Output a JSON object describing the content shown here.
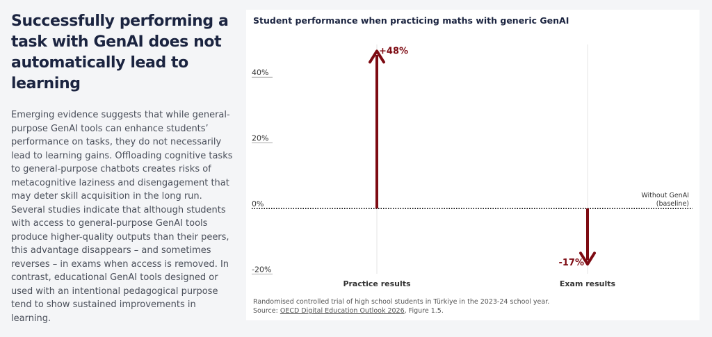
{
  "headline": "Successfully performing a task with GenAI does not automatically lead to learning",
  "body": "Emerging evidence suggests that while general-purpose GenAI tools can enhance students’ performance on tasks, they do not necessarily lead to learning gains. Offloading cognitive tasks to general-purpose chatbots creates risks of metacognitive laziness and disengagement that may deter skill acquisition in the long run. Several studies indicate that although students with access to general-purpose GenAI tools produce higher-quality outputs than their peers, this advantage disappears – and sometimes reverses – in exams when access is removed. In contrast,  educational GenAI tools designed or used with an intentional pedagogical purpose tend to show sustained improvements in learning.",
  "footnote": {
    "line1": "Randomised controlled trial of high school students in Türkiye in the 2023-24 school year.",
    "source_prefix": "Source: ",
    "source_link": "OECD Digital Education Outlook 2026",
    "source_suffix": ", Figure 1.5."
  },
  "chart_data": {
    "type": "bar",
    "title": "Student performance when practicing maths with generic GenAI",
    "categories": [
      "Practice results",
      "Exam results"
    ],
    "values": [
      48,
      -17
    ],
    "value_labels": [
      "+48%",
      "-17%"
    ],
    "ylim": [
      -20,
      48
    ],
    "yticks": [
      40,
      20,
      0,
      -20
    ],
    "ytick_labels": [
      "40%",
      "20%",
      "0%",
      "-20%"
    ],
    "baseline_label": [
      "Without GenAI",
      "(baseline)"
    ],
    "xlabel": "",
    "ylabel": ""
  },
  "colors": {
    "arrow": "#7d0a12",
    "headline": "#1b2440",
    "axis_text": "#333333"
  }
}
